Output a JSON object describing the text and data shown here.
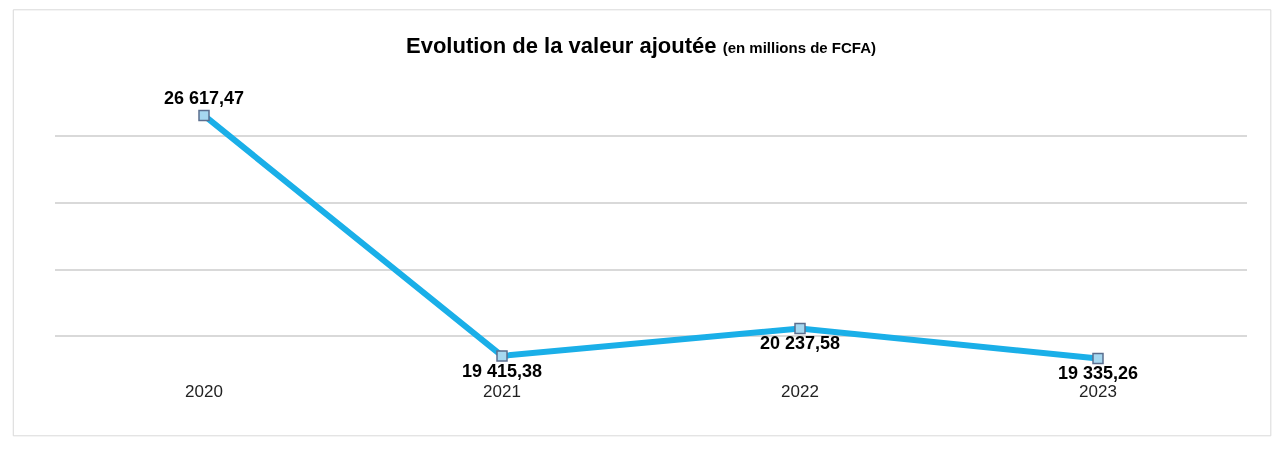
{
  "chart_data": {
    "type": "line",
    "title": "Evolution de la valeur ajoutée",
    "subtitle": "(en millions de FCFA)",
    "categories": [
      "2020",
      "2021",
      "2022",
      "2023"
    ],
    "series": [
      {
        "color": "#1aafe8",
        "values": [
          26617.47,
          19415.38,
          20237.58,
          19335.26
        ],
        "value_labels": [
          "26 617,47",
          "19 415,38",
          "20 237,58",
          "19 335,26"
        ]
      }
    ],
    "grid": "y",
    "tick_labels": "x",
    "marker": "square",
    "line_style": "solid",
    "legend": false
  }
}
